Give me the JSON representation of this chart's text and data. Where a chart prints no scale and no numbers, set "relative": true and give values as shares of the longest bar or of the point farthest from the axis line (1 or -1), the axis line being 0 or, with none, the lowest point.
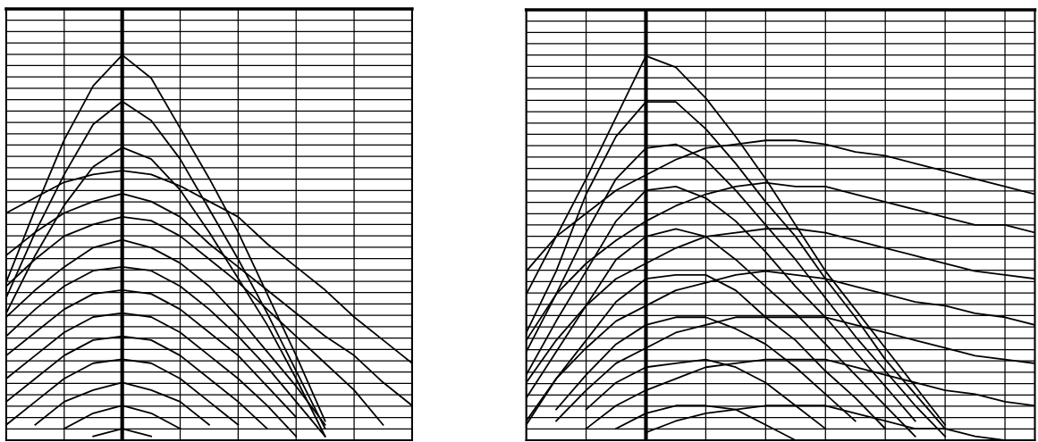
{
  "chart_data": [
    {
      "type": "line",
      "relative": true,
      "grid": true,
      "marker": "none",
      "line_style": "solid",
      "categories": [
        null,
        null,
        null,
        null,
        null,
        null,
        null,
        null,
        null,
        null,
        null,
        null,
        null,
        null,
        null
      ],
      "series": [
        {
          "color": "#000000",
          "values": [
            0.41,
            0.6,
            0.78,
            0.92,
            1.0,
            0.94,
            0.81,
            0.68,
            0.54,
            0.38,
            0.22,
            0.05,
            null,
            null,
            null
          ]
        },
        {
          "color": "#000000",
          "values": [
            0.37,
            0.54,
            0.69,
            0.82,
            0.88,
            0.83,
            0.73,
            0.6,
            0.47,
            0.33,
            0.18,
            0.03,
            null,
            null,
            null
          ]
        },
        {
          "color": "#000000",
          "values": [
            0.33,
            0.48,
            0.61,
            0.71,
            0.76,
            0.73,
            0.65,
            0.54,
            0.42,
            0.3,
            0.16,
            0.01,
            null,
            null,
            null
          ]
        },
        {
          "color": "#000000",
          "values": [
            0.59,
            0.63,
            0.67,
            0.69,
            0.7,
            0.69,
            0.66,
            0.62,
            0.58,
            0.51,
            0.45,
            0.39,
            0.32,
            0.26,
            0.2
          ]
        },
        {
          "color": "#000000",
          "values": [
            0.48,
            0.54,
            0.59,
            0.62,
            0.64,
            0.62,
            0.58,
            0.51,
            0.45,
            0.39,
            0.33,
            0.27,
            0.22,
            0.15,
            0.09
          ]
        },
        {
          "color": "#000000",
          "values": [
            0.4,
            0.47,
            0.53,
            0.56,
            0.58,
            0.57,
            0.53,
            0.47,
            0.41,
            0.34,
            0.27,
            0.2,
            0.13,
            0.04,
            null
          ]
        },
        {
          "color": "#000000",
          "values": [
            0.32,
            0.39,
            0.45,
            0.5,
            0.52,
            0.5,
            0.46,
            0.4,
            0.32,
            0.23,
            0.14,
            0.04,
            null,
            null,
            null
          ]
        },
        {
          "color": "#000000",
          "values": [
            0.27,
            0.34,
            0.4,
            0.44,
            0.45,
            0.44,
            0.4,
            0.34,
            0.27,
            0.19,
            0.1,
            0.01,
            null,
            null,
            null
          ]
        },
        {
          "color": "#000000",
          "values": [
            0.22,
            0.28,
            0.34,
            0.38,
            0.39,
            0.38,
            0.34,
            0.28,
            0.22,
            0.14,
            0.06,
            null,
            null,
            null,
            null
          ]
        },
        {
          "color": "#000000",
          "values": [
            0.16,
            0.22,
            0.28,
            0.32,
            0.33,
            0.32,
            0.28,
            0.22,
            0.16,
            0.09,
            0.01,
            null,
            null,
            null,
            null
          ]
        },
        {
          "color": "#000000",
          "values": [
            0.1,
            0.16,
            0.22,
            0.26,
            0.27,
            0.26,
            0.22,
            0.16,
            0.1,
            0.03,
            null,
            null,
            null,
            null,
            null
          ]
        },
        {
          "color": "#000000",
          "values": [
            0.04,
            0.1,
            0.16,
            0.2,
            0.21,
            0.2,
            0.16,
            0.1,
            0.04,
            null,
            null,
            null,
            null,
            null,
            null
          ]
        },
        {
          "color": "#000000",
          "values": [
            null,
            0.04,
            0.1,
            0.13,
            0.15,
            0.13,
            0.1,
            0.04,
            null,
            null,
            null,
            null,
            null,
            null,
            null
          ]
        },
        {
          "color": "#000000",
          "values": [
            null,
            null,
            0.03,
            0.07,
            0.09,
            0.07,
            0.03,
            null,
            null,
            null,
            null,
            null,
            null,
            null,
            null
          ]
        },
        {
          "color": "#000000",
          "values": [
            null,
            null,
            null,
            0.01,
            0.03,
            0.01,
            null,
            null,
            null,
            null,
            null,
            null,
            null,
            null,
            null
          ]
        }
      ]
    },
    {
      "type": "line",
      "relative": true,
      "grid": true,
      "marker": "none",
      "line_style": "solid",
      "categories": [
        null,
        null,
        null,
        null,
        null,
        null,
        null,
        null,
        null,
        null,
        null,
        null,
        null,
        null,
        null,
        null,
        null,
        null
      ],
      "series": [
        {
          "color": "#000000",
          "values": [
            0.38,
            0.53,
            0.68,
            0.84,
            1.0,
            0.97,
            0.89,
            0.79,
            0.68,
            0.56,
            0.44,
            0.34,
            0.24,
            0.14,
            0.04,
            null,
            null,
            null
          ]
        },
        {
          "color": "#000000",
          "values": [
            0.28,
            0.44,
            0.64,
            0.79,
            0.88,
            0.88,
            0.81,
            0.72,
            0.62,
            0.53,
            0.42,
            0.32,
            0.21,
            0.12,
            0.03,
            null,
            null,
            null
          ]
        },
        {
          "color": "#000000",
          "values": [
            0.23,
            0.38,
            0.54,
            0.68,
            0.76,
            0.77,
            0.73,
            0.65,
            0.56,
            0.47,
            0.37,
            0.27,
            0.18,
            0.09,
            0.01,
            null,
            null,
            null
          ]
        },
        {
          "color": "#000000",
          "values": [
            0.17,
            0.31,
            0.44,
            0.57,
            0.65,
            0.66,
            0.63,
            0.57,
            0.49,
            0.4,
            0.32,
            0.23,
            0.14,
            0.05,
            null,
            null,
            null,
            null
          ]
        },
        {
          "color": "#000000",
          "values": [
            0.11,
            0.23,
            0.35,
            0.47,
            0.53,
            0.55,
            0.53,
            0.47,
            0.4,
            0.33,
            0.25,
            0.17,
            0.09,
            0.01,
            null,
            null,
            null,
            null
          ]
        },
        {
          "color": "#000000",
          "values": [
            0.05,
            0.16,
            0.26,
            0.36,
            0.42,
            0.43,
            0.43,
            0.39,
            0.32,
            0.26,
            0.18,
            0.11,
            0.03,
            null,
            null,
            null,
            null,
            null
          ]
        },
        {
          "color": "#000000",
          "values": [
            null,
            0.08,
            0.17,
            0.25,
            0.3,
            0.32,
            0.32,
            0.29,
            0.25,
            0.19,
            0.12,
            0.05,
            null,
            null,
            null,
            null,
            null,
            null
          ]
        },
        {
          "color": "#000000",
          "values": [
            null,
            null,
            0.08,
            0.15,
            0.19,
            0.2,
            0.21,
            0.19,
            0.15,
            0.09,
            0.03,
            null,
            null,
            null,
            null,
            null,
            null,
            null
          ]
        },
        {
          "color": "#000000",
          "values": [
            null,
            null,
            null,
            0.03,
            0.07,
            0.09,
            0.09,
            0.08,
            0.04,
            0.0,
            null,
            null,
            null,
            null,
            null,
            null,
            null,
            null
          ]
        },
        {
          "color": "#000000",
          "values": [
            0.44,
            0.53,
            0.59,
            0.65,
            0.69,
            0.73,
            0.76,
            0.77,
            0.78,
            0.78,
            0.77,
            0.75,
            0.74,
            0.72,
            0.7,
            0.68,
            0.66,
            0.64
          ]
        },
        {
          "color": "#000000",
          "values": [
            0.26,
            0.38,
            0.46,
            0.52,
            0.57,
            0.61,
            0.64,
            0.66,
            0.67,
            0.66,
            0.66,
            0.64,
            0.62,
            0.6,
            0.58,
            0.56,
            0.56,
            0.54
          ]
        },
        {
          "color": "#000000",
          "values": [
            0.15,
            0.26,
            0.35,
            0.42,
            0.46,
            0.5,
            0.53,
            0.54,
            0.55,
            0.55,
            0.54,
            0.52,
            0.5,
            0.48,
            0.46,
            0.44,
            0.43,
            0.42
          ]
        },
        {
          "color": "#000000",
          "values": [
            0.04,
            0.16,
            0.24,
            0.31,
            0.35,
            0.39,
            0.41,
            0.43,
            0.44,
            0.43,
            0.42,
            0.4,
            0.38,
            0.36,
            0.35,
            0.33,
            0.32,
            0.3
          ]
        },
        {
          "color": "#000000",
          "values": [
            null,
            0.05,
            0.13,
            0.2,
            0.24,
            0.28,
            0.3,
            0.32,
            0.32,
            0.32,
            0.32,
            0.3,
            0.28,
            0.26,
            0.24,
            0.22,
            0.21,
            0.2
          ]
        },
        {
          "color": "#000000",
          "values": [
            null,
            null,
            0.03,
            0.09,
            0.13,
            0.16,
            0.19,
            0.2,
            0.21,
            0.21,
            0.21,
            0.19,
            0.17,
            0.15,
            0.13,
            0.12,
            0.1,
            0.09
          ]
        },
        {
          "color": "#000000",
          "values": [
            null,
            null,
            null,
            null,
            0.02,
            0.05,
            0.07,
            0.08,
            0.09,
            0.09,
            0.09,
            0.07,
            0.05,
            0.03,
            0.03,
            0.01,
            0.0,
            null
          ]
        }
      ]
    }
  ]
}
